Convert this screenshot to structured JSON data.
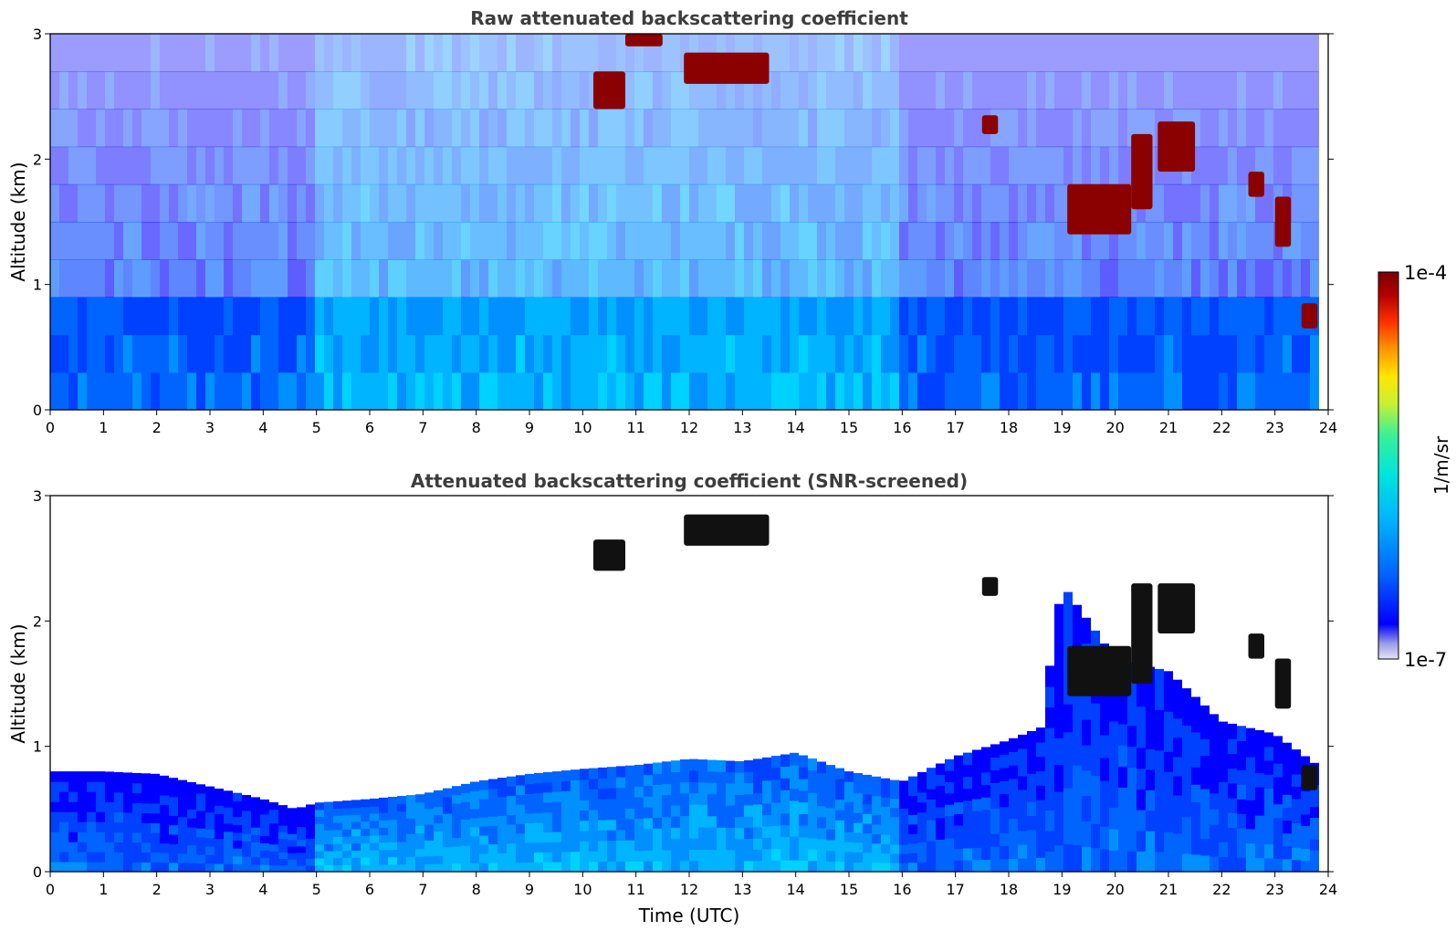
{
  "figure": {
    "colorbar": {
      "unit_label": "1/m/sr",
      "max_label": "1e-4",
      "min_label": "1e-7",
      "colors": [
        "#e4e4f6",
        "#9a9ae8",
        "#0000ff",
        "#0064ff",
        "#00b4ff",
        "#00e6dc",
        "#3cf096",
        "#c8f032",
        "#ffe600",
        "#ff9600",
        "#ff3200",
        "#b40000",
        "#780000"
      ]
    }
  },
  "chart_data": [
    {
      "type": "heatmap",
      "title": "Raw attenuated backscattering coefficient",
      "xlabel": "",
      "ylabel": "Altitude (km)",
      "xlim": [
        0,
        24
      ],
      "ylim": [
        0,
        3
      ],
      "xticks": [
        "0",
        "1",
        "2",
        "3",
        "4",
        "5",
        "6",
        "7",
        "8",
        "9",
        "10",
        "11",
        "12",
        "13",
        "14",
        "15",
        "16",
        "17",
        "18",
        "19",
        "20",
        "21",
        "22",
        "23",
        "24"
      ],
      "yticks": [
        "0",
        "1",
        "2",
        "3"
      ],
      "color_scale": "log",
      "clim": [
        1e-07,
        0.0001
      ],
      "cloud_layers": [
        {
          "time_start": 10.2,
          "time_end": 10.8,
          "alt_start": 2.4,
          "alt_end": 2.7
        },
        {
          "time_start": 10.8,
          "time_end": 11.5,
          "alt_start": 2.9,
          "alt_end": 3.0
        },
        {
          "time_start": 11.9,
          "time_end": 13.5,
          "alt_start": 2.6,
          "alt_end": 2.85
        },
        {
          "time_start": 17.5,
          "time_end": 17.8,
          "alt_start": 2.2,
          "alt_end": 2.35
        },
        {
          "time_start": 19.1,
          "time_end": 20.3,
          "alt_start": 1.4,
          "alt_end": 1.8
        },
        {
          "time_start": 20.3,
          "time_end": 20.7,
          "alt_start": 1.6,
          "alt_end": 2.2
        },
        {
          "time_start": 20.8,
          "time_end": 21.5,
          "alt_start": 1.9,
          "alt_end": 2.3
        },
        {
          "time_start": 22.5,
          "time_end": 22.8,
          "alt_start": 1.7,
          "alt_end": 1.9
        },
        {
          "time_start": 23.0,
          "time_end": 23.3,
          "alt_start": 1.3,
          "alt_end": 1.7
        },
        {
          "time_start": 23.5,
          "time_end": 23.8,
          "alt_start": 0.65,
          "alt_end": 0.85
        }
      ]
    },
    {
      "type": "heatmap",
      "title": "Attenuated backscattering coefficient (SNR-screened)",
      "xlabel": "Time (UTC)",
      "ylabel": "Altitude (km)",
      "xlim": [
        0,
        24
      ],
      "ylim": [
        0,
        3
      ],
      "xticks": [
        "0",
        "1",
        "2",
        "3",
        "4",
        "5",
        "6",
        "7",
        "8",
        "9",
        "10",
        "11",
        "12",
        "13",
        "14",
        "15",
        "16",
        "17",
        "18",
        "19",
        "20",
        "21",
        "22",
        "23",
        "24"
      ],
      "yticks": [
        "0",
        "1",
        "2",
        "3"
      ],
      "color_scale": "log",
      "clim": [
        1e-07,
        0.0001
      ],
      "boundary_layer_top_km": {
        "time": [
          0,
          1,
          2,
          3,
          4,
          4.6,
          5,
          6,
          7,
          8,
          9,
          10,
          11,
          12,
          13,
          14,
          15,
          16,
          17,
          18,
          18.6,
          19,
          20,
          21,
          22,
          23,
          23.8
        ],
        "altitude": [
          0.8,
          0.8,
          0.78,
          0.68,
          0.58,
          0.5,
          0.55,
          0.58,
          0.62,
          0.72,
          0.78,
          0.82,
          0.85,
          0.9,
          0.88,
          0.95,
          0.8,
          0.72,
          0.92,
          1.05,
          1.15,
          2.3,
          1.7,
          1.6,
          1.2,
          1.1,
          0.85
        ]
      },
      "cloud_layers": [
        {
          "time_start": 10.2,
          "time_end": 10.8,
          "alt_start": 2.4,
          "alt_end": 2.65
        },
        {
          "time_start": 11.9,
          "time_end": 13.5,
          "alt_start": 2.6,
          "alt_end": 2.85
        },
        {
          "time_start": 17.5,
          "time_end": 17.8,
          "alt_start": 2.2,
          "alt_end": 2.35
        },
        {
          "time_start": 19.1,
          "time_end": 20.3,
          "alt_start": 1.4,
          "alt_end": 1.8
        },
        {
          "time_start": 20.3,
          "time_end": 20.7,
          "alt_start": 1.5,
          "alt_end": 2.3
        },
        {
          "time_start": 20.8,
          "time_end": 21.5,
          "alt_start": 1.9,
          "alt_end": 2.3
        },
        {
          "time_start": 22.5,
          "time_end": 22.8,
          "alt_start": 1.7,
          "alt_end": 1.9
        },
        {
          "time_start": 23.0,
          "time_end": 23.3,
          "alt_start": 1.3,
          "alt_end": 1.7
        },
        {
          "time_start": 23.5,
          "time_end": 23.8,
          "alt_start": 0.65,
          "alt_end": 0.85
        }
      ]
    }
  ]
}
